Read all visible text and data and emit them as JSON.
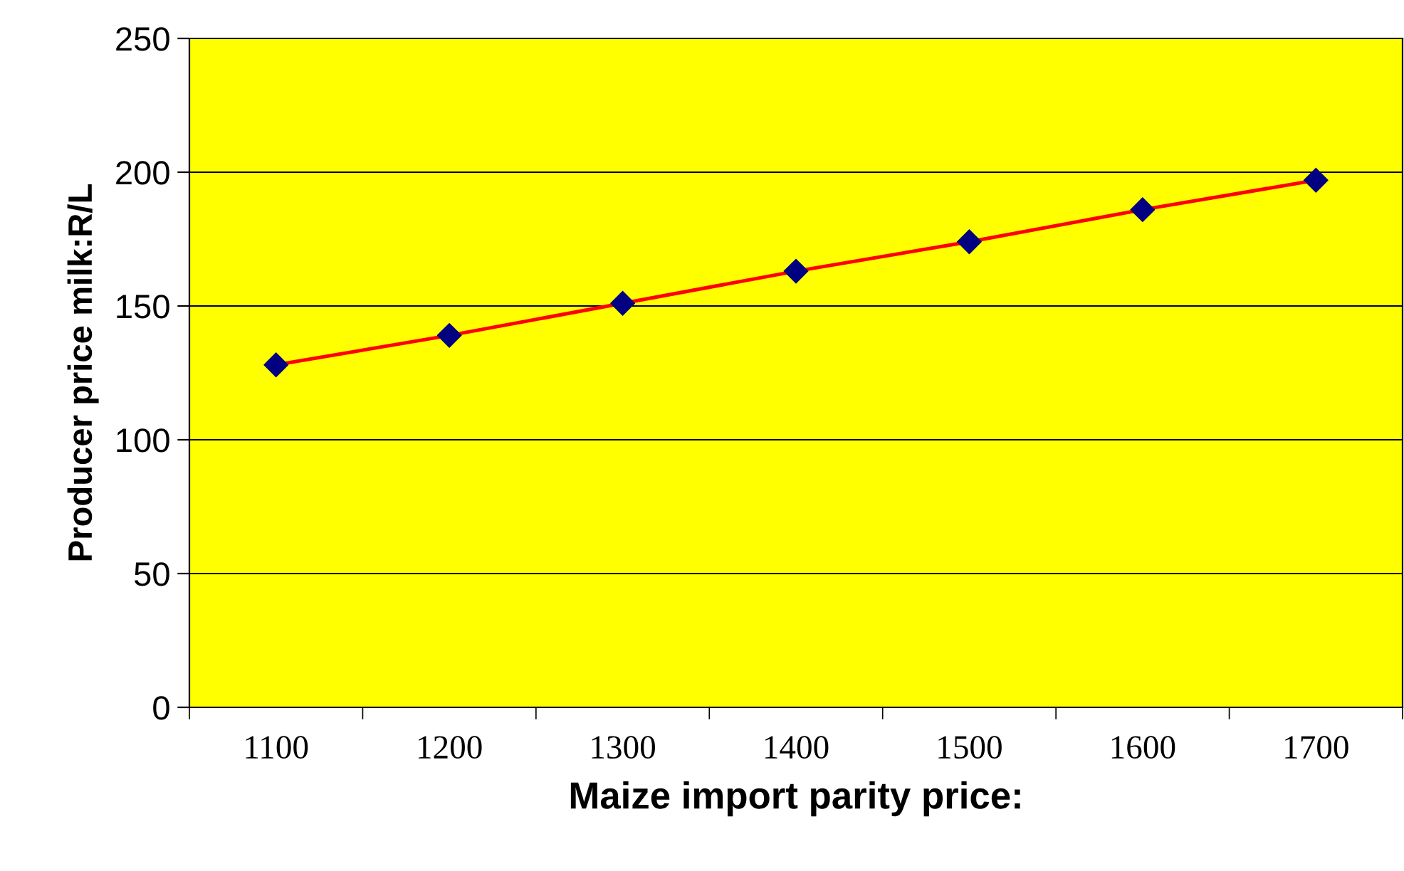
{
  "chart_data": {
    "type": "line",
    "xlabel": "Maize import parity price:",
    "ylabel": "Producer price milk:R/L",
    "categories": [
      "1100",
      "1200",
      "1300",
      "1400",
      "1500",
      "1600",
      "1700"
    ],
    "series": [
      {
        "color": "#ff0000",
        "colors": [
          "#000080",
          "#000080",
          "#000080",
          "#000080",
          "#000080",
          "#000080",
          "#000080"
        ],
        "values": [
          128,
          139,
          151,
          163,
          174,
          186,
          197
        ]
      }
    ],
    "ylim": [
      0,
      250
    ],
    "yticks": [
      0,
      50,
      100,
      150,
      200,
      250
    ],
    "grid": "y",
    "marker": "diamond",
    "line_style": "solid"
  }
}
